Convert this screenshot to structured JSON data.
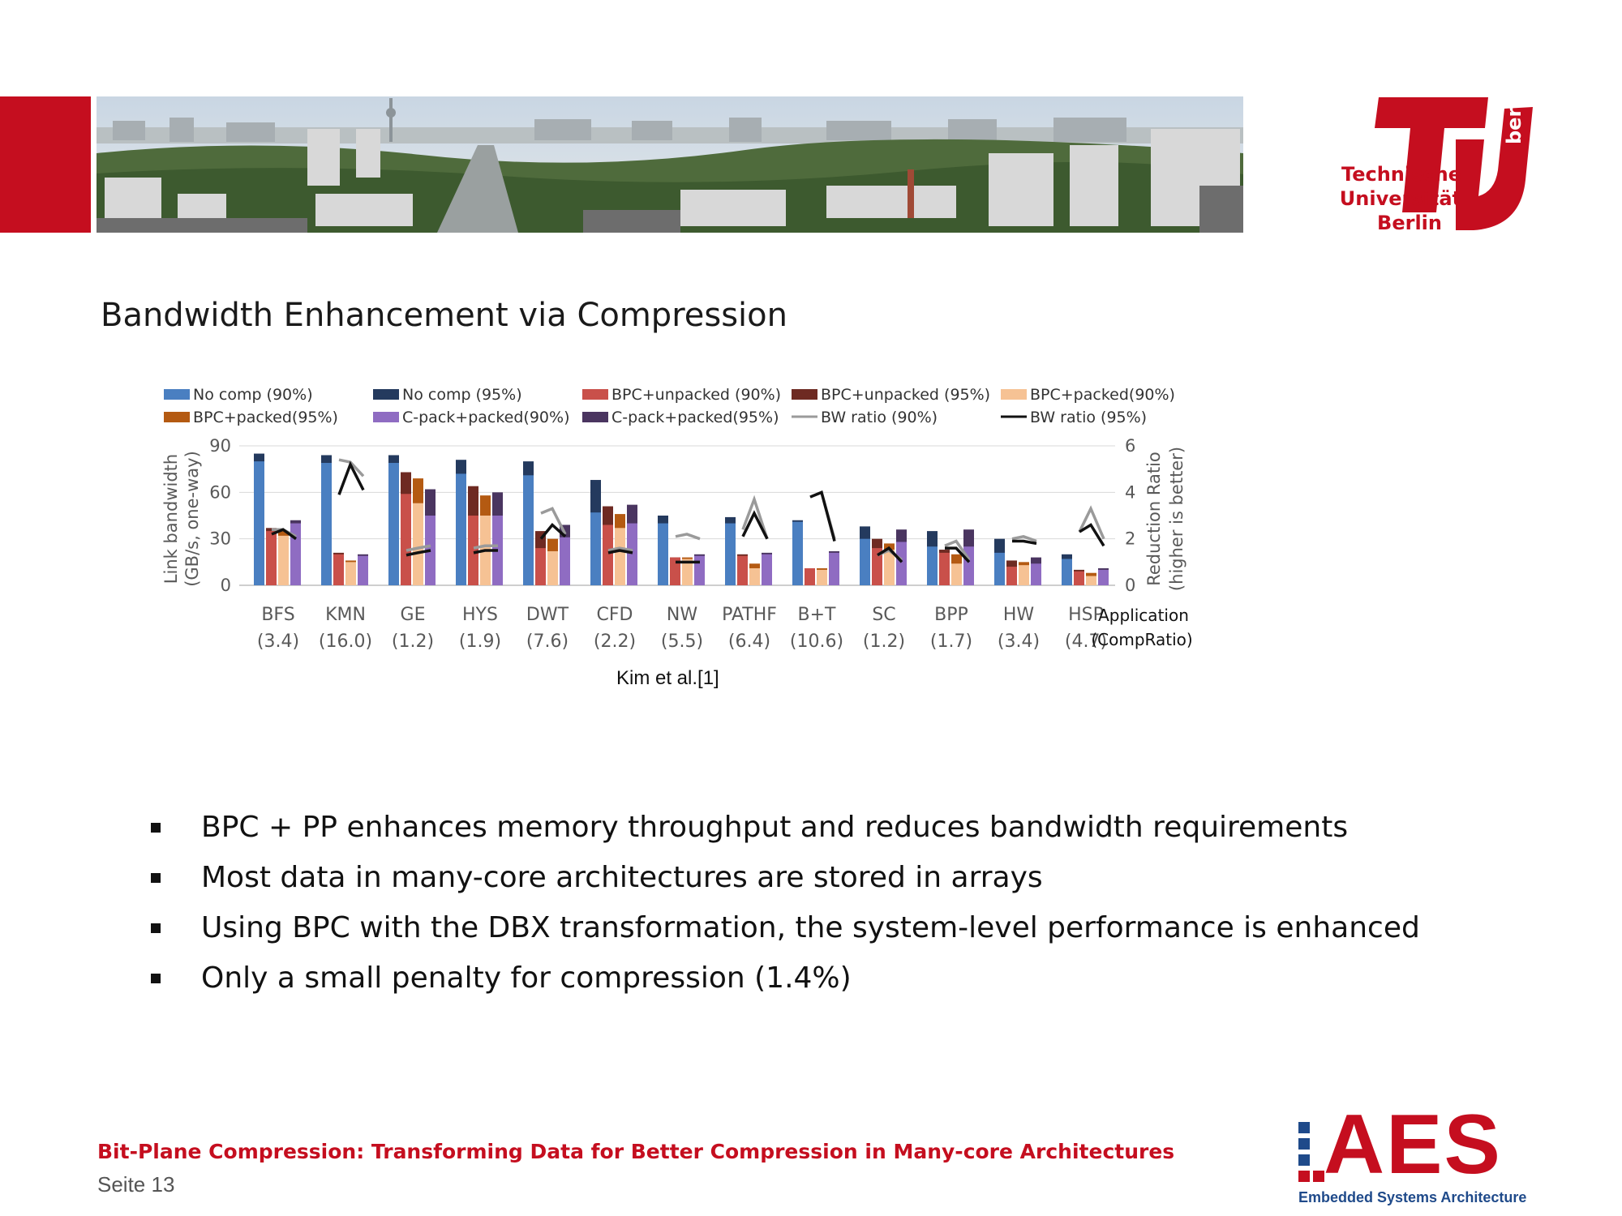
{
  "slide": {
    "title": "Bandwidth Enhancement via Compression",
    "citation": "Kim et al.[1]",
    "bullets": [
      "BPC + PP enhances memory throughput and reduces bandwidth requirements",
      "Most data in many-core architectures are stored in arrays",
      "Using BPC with the DBX transformation, the system-level performance is enhanced",
      "Only a small penalty for compression (1.4%)"
    ],
    "footer_title": "Bit-Plane Compression: Transforming Data for Better Compression in Many-core Architectures",
    "page_label": "Seite 13"
  },
  "logos": {
    "tu": {
      "line1": "Technische",
      "line2": "Universität",
      "line3": "Berlin",
      "side": "berlin"
    },
    "aes": {
      "letters": "AES",
      "subtitle": "Embedded Systems Architecture"
    }
  },
  "colors": {
    "brand_red": "#c50e1f",
    "aes_blue": "#1f4a8a"
  },
  "chart_data": {
    "type": "bar",
    "categories": [
      "BFS",
      "KMN",
      "GE",
      "HYS",
      "DWT",
      "CFD",
      "NW",
      "PATHF",
      "B+T",
      "SC",
      "BPP",
      "HW",
      "HSP"
    ],
    "category_ratios": [
      "(3.4)",
      "(16.0)",
      "(1.2)",
      "(1.9)",
      "(7.6)",
      "(2.2)",
      "(5.5)",
      "(6.4)",
      "(10.6)",
      "(1.2)",
      "(1.7)",
      "(3.4)",
      "(4.7)"
    ],
    "xlabel_line1": "Application",
    "xlabel_line2": "(CompRatio)",
    "ylabel_left_line1": "Link bandwidth",
    "ylabel_left_line2": "(GB/s, one-way)",
    "ylabel_right_line1": "Reduction Ratio",
    "ylabel_right_line2": "(higher is better)",
    "ylim_left": [
      0,
      90
    ],
    "yticks_left": [
      0,
      30,
      60,
      90
    ],
    "ylim_right": [
      0,
      6
    ],
    "yticks_right": [
      0,
      2,
      4,
      6
    ],
    "grid": true,
    "legend_position": "top",
    "bar_groups": [
      {
        "name": "No comp",
        "series": [
          {
            "name": "No comp (90%)",
            "color": "#4a7fc1",
            "values": [
              80,
              79,
              79,
              72,
              71,
              47,
              40,
              40,
              41,
              30,
              25,
              21,
              17
            ]
          },
          {
            "name": "No comp (95%)",
            "color": "#243a5e",
            "values": [
              85,
              84,
              84,
              81,
              80,
              68,
              45,
              44,
              42,
              38,
              35,
              30,
              20
            ]
          }
        ]
      },
      {
        "name": "BPC+unpacked",
        "series": [
          {
            "name": "BPC+unpacked (90%)",
            "color": "#c9504a",
            "values": [
              35,
              20,
              59,
              45,
              24,
              39,
              18,
              19,
              11,
              24,
              21,
              12,
              9
            ]
          },
          {
            "name": "BPC+unpacked (95%)",
            "color": "#6e2a22",
            "values": [
              37,
              21,
              73,
              64,
              35,
              51,
              18,
              20,
              11,
              30,
              23,
              16,
              10
            ]
          }
        ]
      },
      {
        "name": "BPC+packed",
        "series": [
          {
            "name": "BPC+packed(90%)",
            "color": "#f6c294",
            "values": [
              32,
              15,
              53,
              45,
              22,
              37,
              17,
              11,
              10,
              23,
              14,
              13,
              6
            ]
          },
          {
            "name": "BPC+packed(95%)",
            "color": "#b45a12",
            "values": [
              35,
              16,
              69,
              58,
              30,
              46,
              18,
              14,
              11,
              27,
              20,
              15,
              8
            ]
          }
        ]
      },
      {
        "name": "C-pack+packed",
        "series": [
          {
            "name": "C-pack+packed(90%)",
            "color": "#8f6cc2",
            "values": [
              40,
              19,
              45,
              45,
              31,
              40,
              19,
              20,
              21,
              28,
              25,
              14,
              10
            ]
          },
          {
            "name": "C-pack+packed(95%)",
            "color": "#4a3560",
            "values": [
              42,
              20,
              62,
              60,
              39,
              52,
              20,
              21,
              22,
              36,
              36,
              18,
              11
            ]
          }
        ]
      }
    ],
    "lines": [
      {
        "name": "BW ratio (90%)",
        "color": "#9a9a9a",
        "values": [
          [
            2.4,
            2.4,
            2.1
          ],
          [
            5.4,
            5.3,
            4.7
          ],
          [
            1.5,
            1.6,
            1.7
          ],
          [
            1.6,
            1.7,
            1.7
          ],
          [
            3.1,
            3.3,
            2.2
          ],
          [
            1.5,
            1.6,
            1.5
          ],
          [
            2.1,
            2.2,
            2.0
          ],
          [
            2.4,
            3.7,
            2.0
          ],
          [
            3.8,
            4.0,
            2.0
          ],
          [
            1.3,
            1.5,
            1.1
          ],
          [
            1.7,
            1.9,
            1.1
          ],
          [
            2.0,
            2.1,
            1.9
          ],
          [
            2.3,
            3.3,
            2.0
          ]
        ]
      },
      {
        "name": "BW ratio (95%)",
        "color": "#111111",
        "values": [
          [
            2.2,
            2.4,
            2.0
          ],
          [
            3.9,
            5.2,
            4.1
          ],
          [
            1.3,
            1.4,
            1.5
          ],
          [
            1.4,
            1.5,
            1.5
          ],
          [
            2.0,
            2.6,
            2.1
          ],
          [
            1.4,
            1.5,
            1.4
          ],
          [
            1.0,
            1.0,
            1.0
          ],
          [
            2.1,
            3.1,
            2.0
          ],
          [
            3.8,
            4.0,
            1.9
          ],
          [
            1.3,
            1.6,
            1.0
          ],
          [
            1.6,
            1.6,
            1.0
          ],
          [
            1.9,
            1.9,
            1.8
          ],
          [
            2.3,
            2.6,
            1.7
          ]
        ]
      }
    ],
    "legend": [
      "No comp (90%)",
      "No comp (95%)",
      "BPC+unpacked (90%)",
      "BPC+unpacked (95%)",
      "BPC+packed(90%)",
      "BPC+packed(95%)",
      "C-pack+packed(90%)",
      "C-pack+packed(95%)",
      "BW ratio (90%)",
      "BW ratio (95%)"
    ]
  }
}
